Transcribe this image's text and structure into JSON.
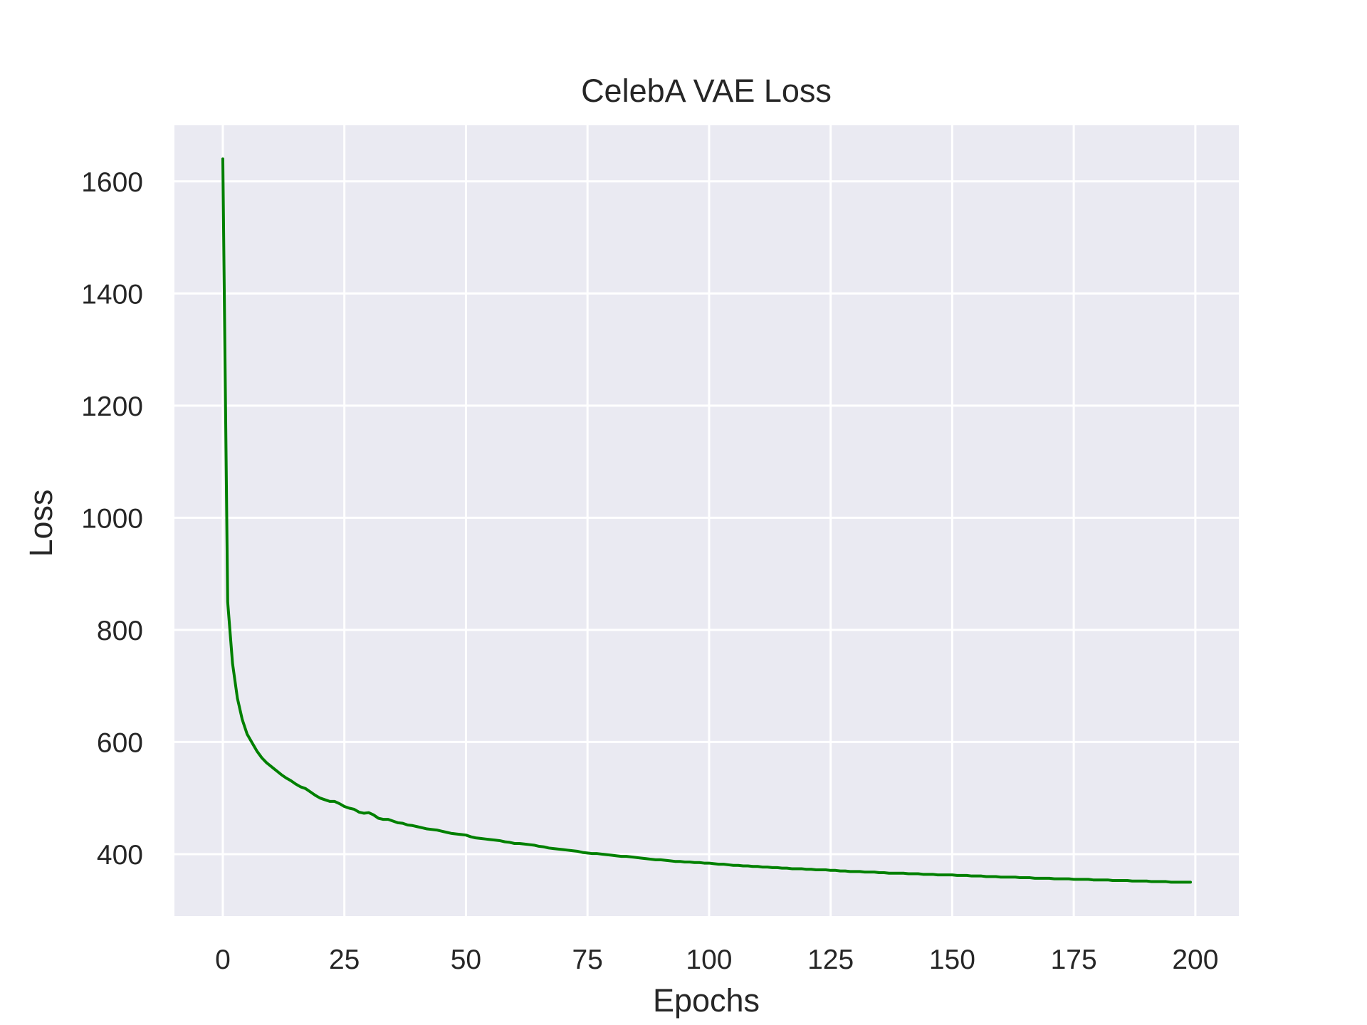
{
  "chart_data": {
    "type": "line",
    "title": "CelebA VAE Loss",
    "xlabel": "Epochs",
    "ylabel": "Loss",
    "xlim": [
      -9.95,
      208.95
    ],
    "ylim": [
      289.5,
      1700
    ],
    "grid": true,
    "legend": "none",
    "style": {
      "background_color": "#eaeaf2",
      "grid_color": "#ffffff",
      "line_color": "#008000",
      "text_color": "#262626"
    },
    "x_ticks": [
      0,
      25,
      50,
      75,
      100,
      125,
      150,
      175,
      200
    ],
    "x_tick_labels": [
      "0",
      "25",
      "50",
      "75",
      "100",
      "125",
      "150",
      "175",
      "200"
    ],
    "y_ticks": [
      400,
      600,
      800,
      1000,
      1200,
      1400,
      1600
    ],
    "y_tick_labels": [
      "400",
      "600",
      "800",
      "1000",
      "1200",
      "1400",
      "1600"
    ],
    "series": [
      {
        "values": [
          [
            0,
            1640
          ],
          [
            1,
            850
          ],
          [
            2,
            740
          ],
          [
            3,
            678
          ],
          [
            4,
            640
          ],
          [
            5,
            614
          ],
          [
            6,
            599
          ],
          [
            7,
            584
          ],
          [
            8,
            572
          ],
          [
            9,
            563
          ],
          [
            10,
            556
          ],
          [
            11,
            549
          ],
          [
            12,
            542
          ],
          [
            13,
            536
          ],
          [
            14,
            531
          ],
          [
            15,
            525
          ],
          [
            16,
            520
          ],
          [
            17,
            517
          ],
          [
            18,
            511
          ],
          [
            19,
            505
          ],
          [
            20,
            500
          ],
          [
            21,
            497
          ],
          [
            22,
            494
          ],
          [
            23,
            494
          ],
          [
            24,
            490
          ],
          [
            25,
            485
          ],
          [
            26,
            482
          ],
          [
            27,
            480
          ],
          [
            28,
            475
          ],
          [
            29,
            473
          ],
          [
            30,
            474
          ],
          [
            31,
            470
          ],
          [
            32,
            464
          ],
          [
            33,
            462
          ],
          [
            34,
            462
          ],
          [
            35,
            459
          ],
          [
            36,
            456
          ],
          [
            37,
            455
          ],
          [
            38,
            452
          ],
          [
            39,
            451
          ],
          [
            40,
            449
          ],
          [
            41,
            447
          ],
          [
            42,
            445
          ],
          [
            43,
            444
          ],
          [
            44,
            443
          ],
          [
            45,
            441
          ],
          [
            46,
            439
          ],
          [
            47,
            437
          ],
          [
            48,
            436
          ],
          [
            49,
            435
          ],
          [
            50,
            434
          ],
          [
            51,
            431
          ],
          [
            52,
            429
          ],
          [
            53,
            428
          ],
          [
            54,
            427
          ],
          [
            55,
            426
          ],
          [
            56,
            425
          ],
          [
            57,
            424
          ],
          [
            58,
            422
          ],
          [
            59,
            421
          ],
          [
            60,
            419
          ],
          [
            61,
            419
          ],
          [
            62,
            418
          ],
          [
            63,
            417
          ],
          [
            64,
            416
          ],
          [
            65,
            414
          ],
          [
            66,
            413
          ],
          [
            67,
            411
          ],
          [
            68,
            410
          ],
          [
            69,
            409
          ],
          [
            70,
            408
          ],
          [
            71,
            407
          ],
          [
            72,
            406
          ],
          [
            73,
            405
          ],
          [
            74,
            403
          ],
          [
            75,
            402
          ],
          [
            76,
            401
          ],
          [
            77,
            401
          ],
          [
            78,
            400
          ],
          [
            79,
            399
          ],
          [
            80,
            398
          ],
          [
            81,
            397
          ],
          [
            82,
            396
          ],
          [
            83,
            396
          ],
          [
            84,
            395
          ],
          [
            85,
            394
          ],
          [
            86,
            393
          ],
          [
            87,
            392
          ],
          [
            88,
            391
          ],
          [
            89,
            390
          ],
          [
            90,
            390
          ],
          [
            91,
            389
          ],
          [
            92,
            388
          ],
          [
            93,
            387
          ],
          [
            94,
            387
          ],
          [
            95,
            386
          ],
          [
            96,
            386
          ],
          [
            97,
            385
          ],
          [
            98,
            385
          ],
          [
            99,
            384
          ],
          [
            100,
            384
          ],
          [
            101,
            383
          ],
          [
            102,
            382
          ],
          [
            103,
            382
          ],
          [
            104,
            381
          ],
          [
            105,
            380
          ],
          [
            106,
            380
          ],
          [
            107,
            379
          ],
          [
            108,
            379
          ],
          [
            109,
            378
          ],
          [
            110,
            378
          ],
          [
            111,
            377
          ],
          [
            112,
            377
          ],
          [
            113,
            376
          ],
          [
            114,
            376
          ],
          [
            115,
            375
          ],
          [
            116,
            375
          ],
          [
            117,
            374
          ],
          [
            118,
            374
          ],
          [
            119,
            374
          ],
          [
            120,
            373
          ],
          [
            121,
            373
          ],
          [
            122,
            372
          ],
          [
            123,
            372
          ],
          [
            124,
            372
          ],
          [
            125,
            371
          ],
          [
            126,
            371
          ],
          [
            127,
            370
          ],
          [
            128,
            370
          ],
          [
            129,
            369
          ],
          [
            130,
            369
          ],
          [
            131,
            369
          ],
          [
            132,
            368
          ],
          [
            133,
            368
          ],
          [
            134,
            368
          ],
          [
            135,
            367
          ],
          [
            136,
            367
          ],
          [
            137,
            366
          ],
          [
            138,
            366
          ],
          [
            139,
            366
          ],
          [
            140,
            366
          ],
          [
            141,
            365
          ],
          [
            142,
            365
          ],
          [
            143,
            365
          ],
          [
            144,
            364
          ],
          [
            145,
            364
          ],
          [
            146,
            364
          ],
          [
            147,
            363
          ],
          [
            148,
            363
          ],
          [
            149,
            363
          ],
          [
            150,
            363
          ],
          [
            151,
            362
          ],
          [
            152,
            362
          ],
          [
            153,
            362
          ],
          [
            154,
            361
          ],
          [
            155,
            361
          ],
          [
            156,
            361
          ],
          [
            157,
            360
          ],
          [
            158,
            360
          ],
          [
            159,
            360
          ],
          [
            160,
            359
          ],
          [
            161,
            359
          ],
          [
            162,
            359
          ],
          [
            163,
            359
          ],
          [
            164,
            358
          ],
          [
            165,
            358
          ],
          [
            166,
            358
          ],
          [
            167,
            357
          ],
          [
            168,
            357
          ],
          [
            169,
            357
          ],
          [
            170,
            357
          ],
          [
            171,
            356
          ],
          [
            172,
            356
          ],
          [
            173,
            356
          ],
          [
            174,
            356
          ],
          [
            175,
            355
          ],
          [
            176,
            355
          ],
          [
            177,
            355
          ],
          [
            178,
            355
          ],
          [
            179,
            354
          ],
          [
            180,
            354
          ],
          [
            181,
            354
          ],
          [
            182,
            354
          ],
          [
            183,
            353
          ],
          [
            184,
            353
          ],
          [
            185,
            353
          ],
          [
            186,
            353
          ],
          [
            187,
            352
          ],
          [
            188,
            352
          ],
          [
            189,
            352
          ],
          [
            190,
            352
          ],
          [
            191,
            351
          ],
          [
            192,
            351
          ],
          [
            193,
            351
          ],
          [
            194,
            351
          ],
          [
            195,
            350
          ],
          [
            196,
            350
          ],
          [
            197,
            350
          ],
          [
            198,
            350
          ],
          [
            199,
            350
          ]
        ]
      }
    ]
  }
}
